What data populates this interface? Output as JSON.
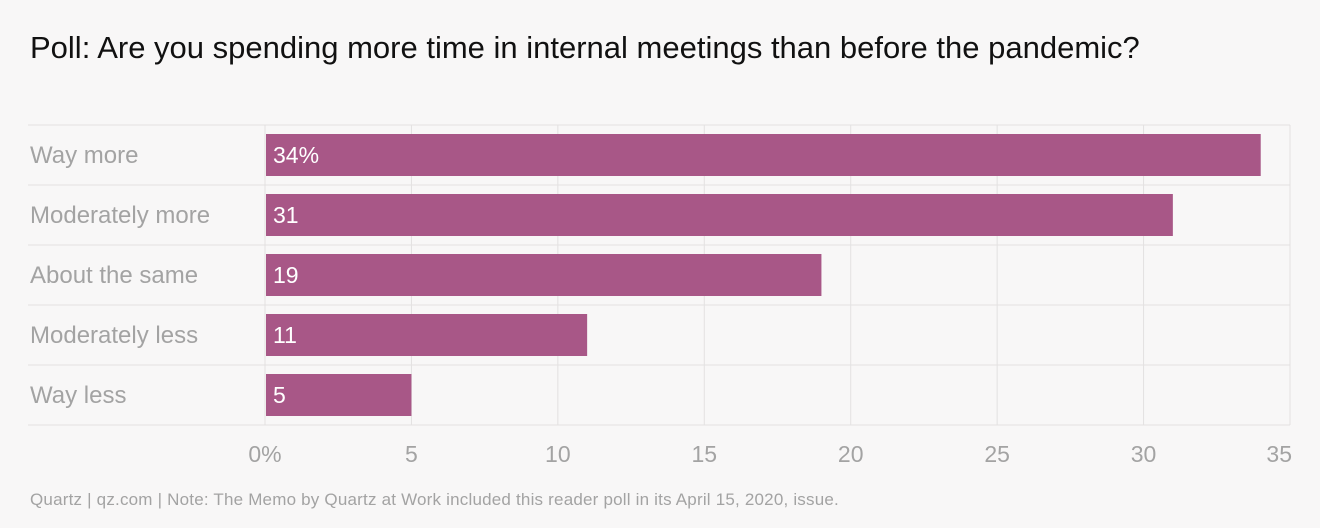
{
  "chart_data": {
    "type": "bar",
    "orientation": "horizontal",
    "title": "Poll: Are you spending more time in internal meetings than before the pandemic?",
    "categories": [
      "Way more",
      "Moderately more",
      "About the same",
      "Moderately less",
      "Way less"
    ],
    "values": [
      34,
      31,
      19,
      11,
      5
    ],
    "data_labels": [
      "34%",
      "31",
      "19",
      "11",
      "5"
    ],
    "xlim": [
      0,
      35
    ],
    "x_ticks": [
      0,
      5,
      10,
      15,
      20,
      25,
      30,
      35
    ],
    "x_tick_labels": [
      "0%",
      "5",
      "10",
      "15",
      "20",
      "25",
      "30",
      "35"
    ],
    "xlabel": "",
    "ylabel": "",
    "grid": true,
    "legend": "none",
    "colors": {
      "bar": "#a85787",
      "data_label": "#ffffff",
      "category_label": "#a3a3a3",
      "tick_label": "#a3a3a3",
      "grid": "#e3e1e1",
      "title": "#111111"
    }
  },
  "footer": {
    "note": "Quartz | qz.com | Note: The Memo by Quartz at Work included this reader poll in its April 15, 2020, issue."
  }
}
